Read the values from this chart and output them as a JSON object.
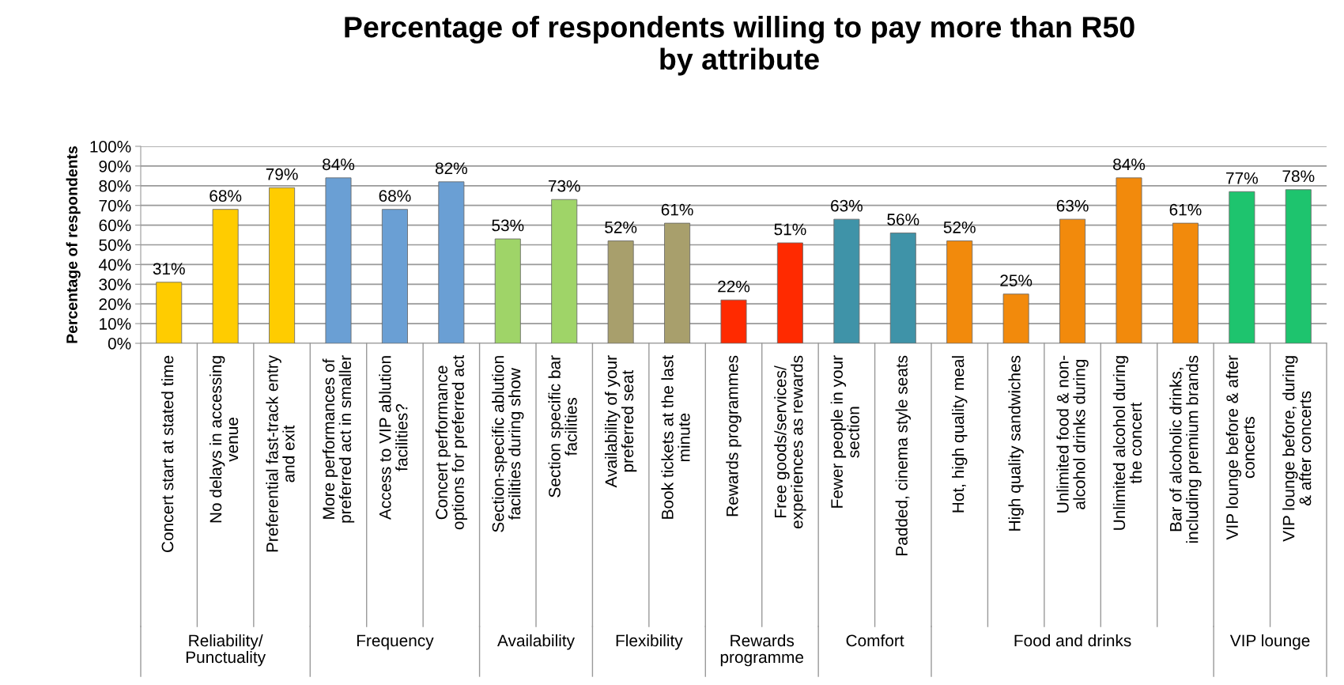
{
  "chart_data": {
    "type": "bar",
    "title": "Percentage of respondents willing to pay more than R50\nby attribute",
    "ylabel": "Percentage of respondents",
    "categories": [
      "Concert start at stated time",
      "No delays in accessing\nvenue",
      "Preferential fast-track entry\nand exit",
      "More performances of\npreferred act in smaller",
      "Access to VIP ablution\nfacilities?",
      "Concert performance\noptions for preferred act",
      "Section-specific ablution\nfacilities during show",
      "Section specific bar\nfacilities",
      "Availability of your\npreferred seat",
      "Book tickets at the last\nminute",
      "Rewards programmes",
      "Free goods/services/\nexperiences as rewards",
      "Fewer people in your\nsection",
      "Padded, cinema style seats",
      "Hot, high quality meal",
      "High quality sandwiches",
      "Unlimited food & non-\nalcohol drinks during",
      "Unlimited alcohol during\nthe concert",
      "Bar of alcoholic drinks,\nincluding premium brands",
      "VIP lounge before & after\nconcerts",
      "VIP lounge before, during\n& after concerts"
    ],
    "values": [
      31,
      68,
      79,
      84,
      68,
      82,
      53,
      73,
      52,
      61,
      22,
      51,
      63,
      56,
      52,
      25,
      63,
      84,
      61,
      77,
      78
    ],
    "value_labels": [
      "31%",
      "68%",
      "79%",
      "84%",
      "68%",
      "82%",
      "53%",
      "73%",
      "52%",
      "61%",
      "22%",
      "51%",
      "63%",
      "56%",
      "52%",
      "25%",
      "63%",
      "84%",
      "61%",
      "77%",
      "78%"
    ],
    "colors": [
      "#ffcc00",
      "#ffcc00",
      "#ffcc00",
      "#6a9fd4",
      "#6a9fd4",
      "#6a9fd4",
      "#9fd468",
      "#9fd468",
      "#a89f6c",
      "#a89f6c",
      "#ff2a00",
      "#ff2a00",
      "#3f93a8",
      "#3f93a8",
      "#f28a0c",
      "#f28a0c",
      "#f28a0c",
      "#f28a0c",
      "#f28a0c",
      "#1ec46e",
      "#1ec46e"
    ],
    "annotations": [
      "Reliability/\nPunctuality",
      "Frequency",
      "Availability",
      "Flexibility",
      "Rewards\nprogramme",
      "Comfort",
      "Food and drinks",
      "VIP lounge"
    ],
    "ylim": [
      0,
      100
    ],
    "yticks": [
      {
        "value": 0,
        "label": "0%"
      },
      {
        "value": 10,
        "label": "10%"
      },
      {
        "value": 20,
        "label": "20%"
      },
      {
        "value": 30,
        "label": "30%"
      },
      {
        "value": 40,
        "label": "40%"
      },
      {
        "value": 50,
        "label": "50%"
      },
      {
        "value": 60,
        "label": "60%"
      },
      {
        "value": 70,
        "label": "70%"
      },
      {
        "value": 80,
        "label": "80%"
      },
      {
        "value": 90,
        "label": "90%"
      },
      {
        "value": 100,
        "label": "100%"
      }
    ],
    "grid": "y"
  }
}
